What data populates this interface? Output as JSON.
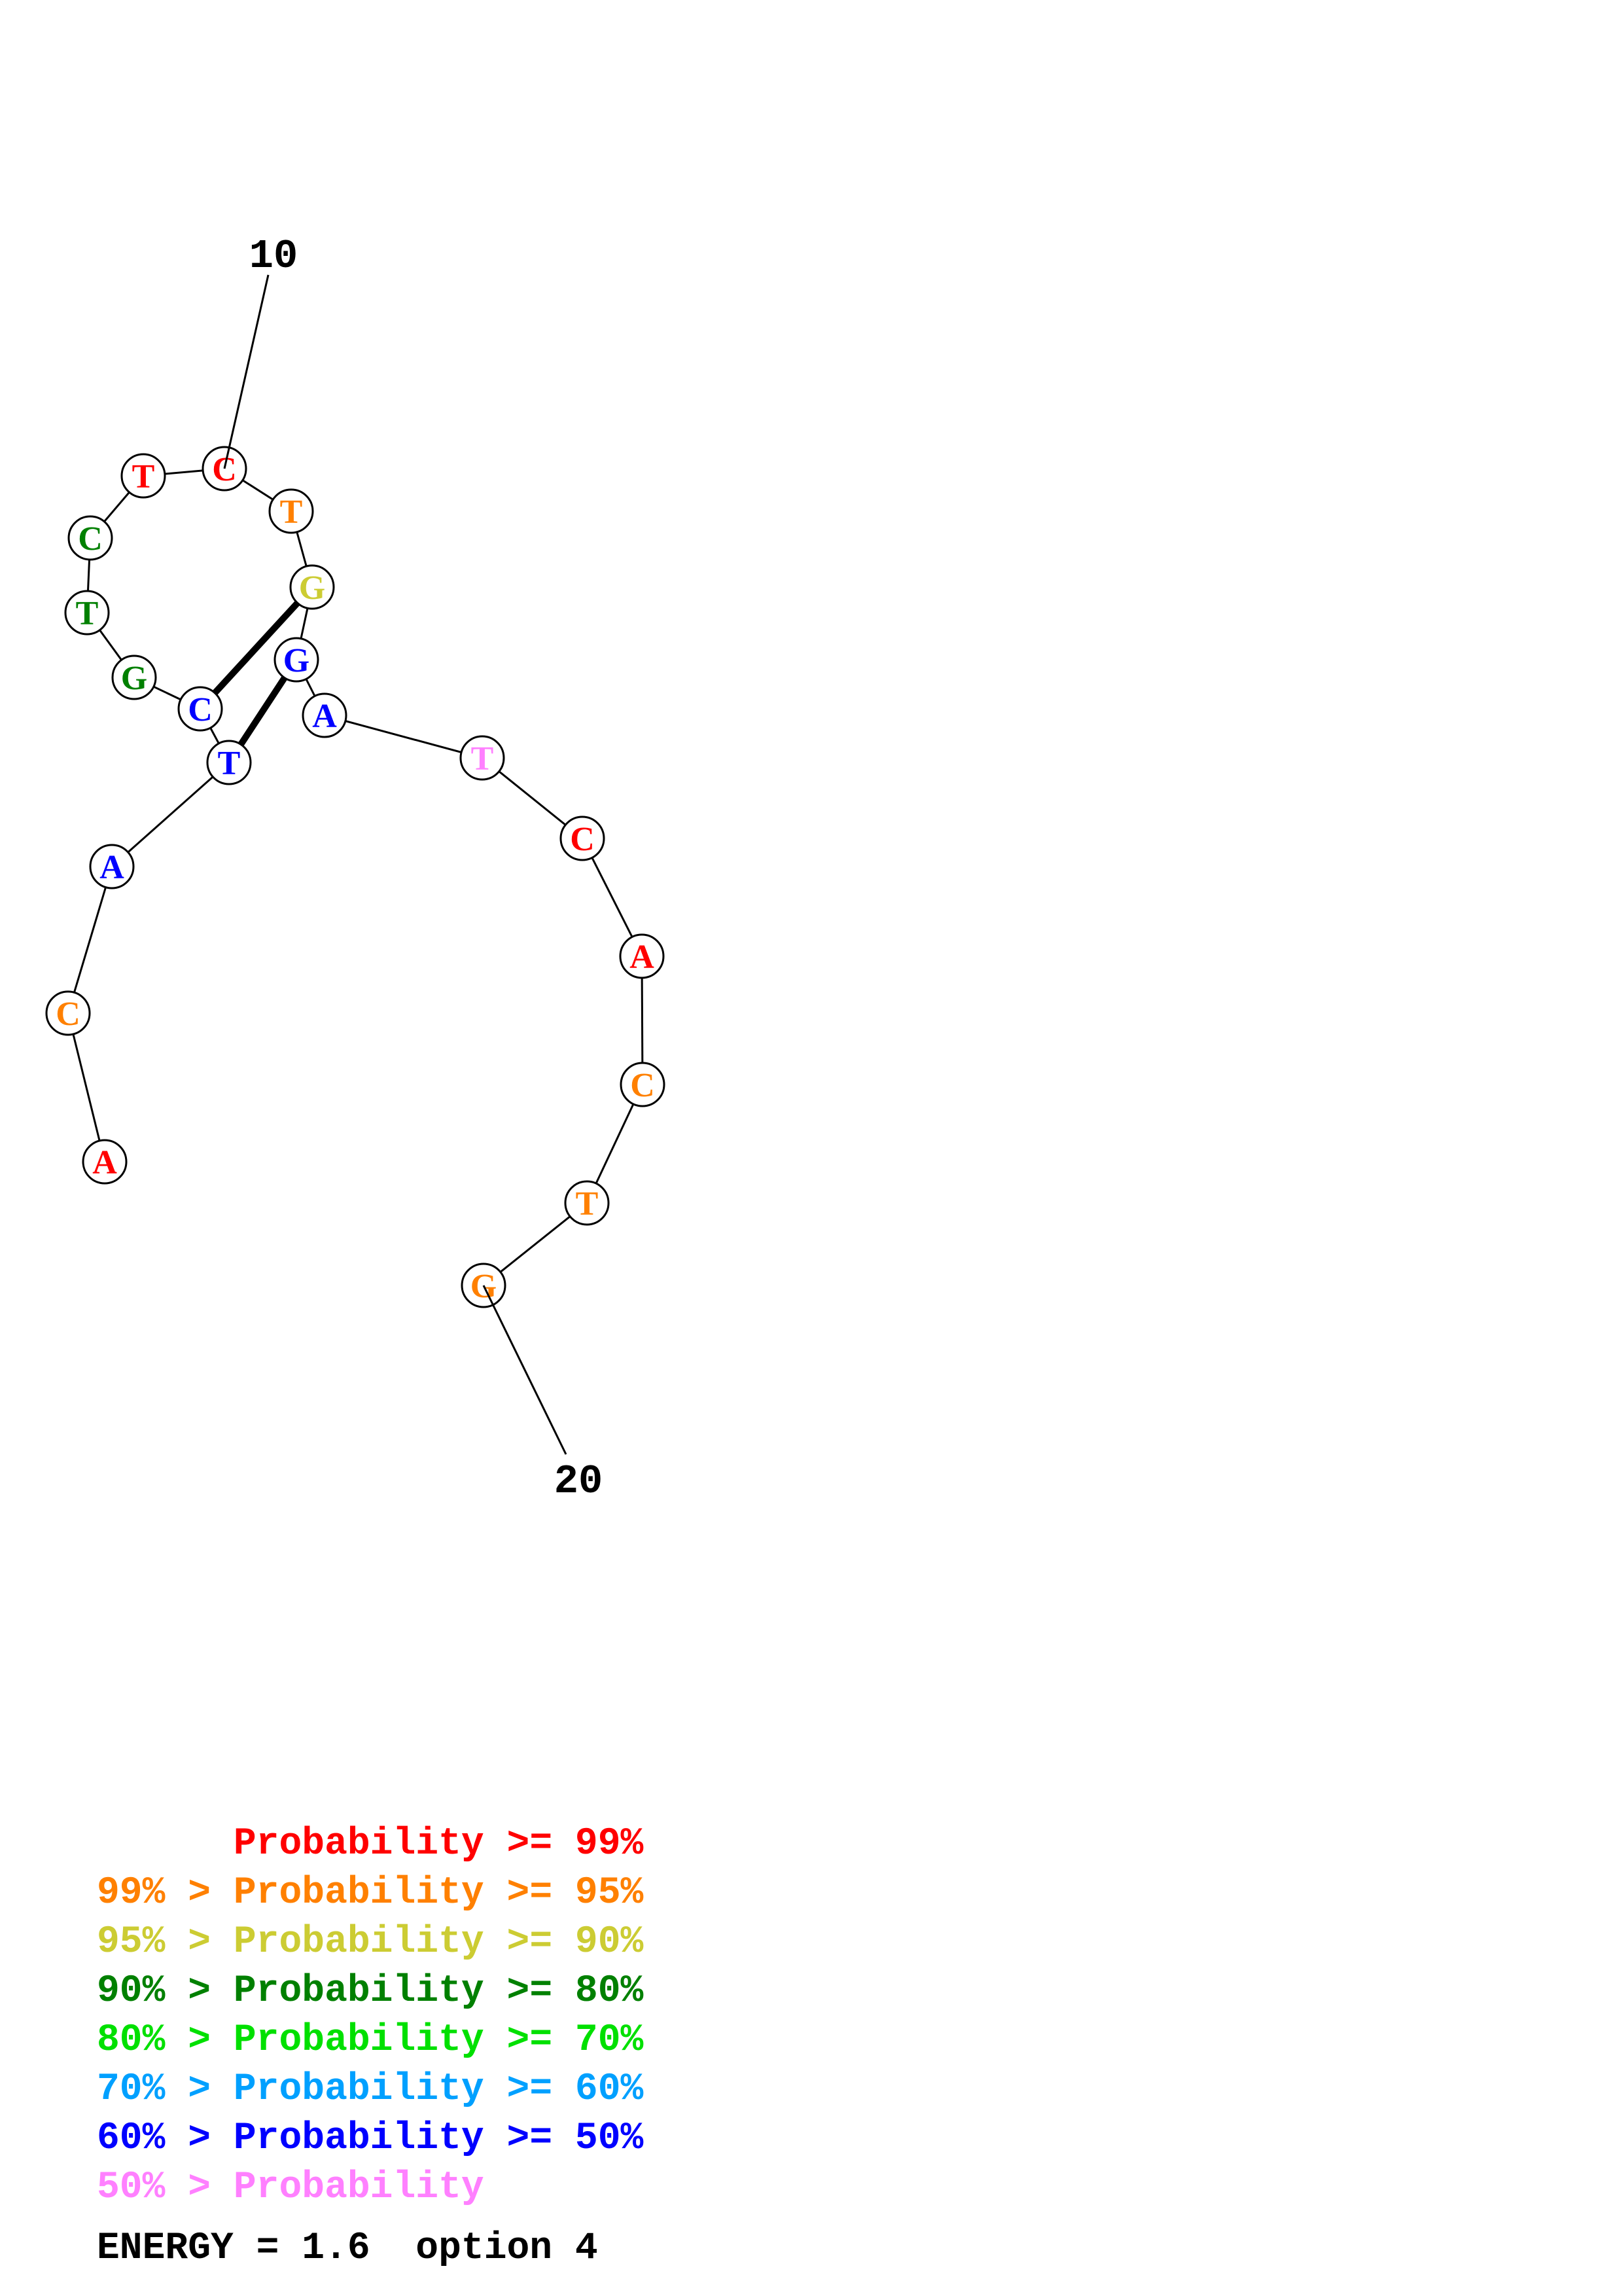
{
  "structure": {
    "label_start": "10",
    "label_end": "20",
    "nucleotides": [
      {
        "base": "A",
        "color": "#ff0000"
      },
      {
        "base": "C",
        "color": "#ff8000"
      },
      {
        "base": "A",
        "color": "#0000ff"
      },
      {
        "base": "T",
        "color": "#0000ff"
      },
      {
        "base": "C",
        "color": "#0000ff"
      },
      {
        "base": "G",
        "color": "#008000"
      },
      {
        "base": "T",
        "color": "#008000"
      },
      {
        "base": "C",
        "color": "#008000"
      },
      {
        "base": "T",
        "color": "#ff0000"
      },
      {
        "base": "C",
        "color": "#ff0000"
      },
      {
        "base": "T",
        "color": "#ff8000"
      },
      {
        "base": "G",
        "color": "#cccc33"
      },
      {
        "base": "G",
        "color": "#0000ff"
      },
      {
        "base": "A",
        "color": "#0000ff"
      },
      {
        "base": "T",
        "color": "#ff80ff"
      },
      {
        "base": "C",
        "color": "#ff0000"
      },
      {
        "base": "A",
        "color": "#ff0000"
      },
      {
        "base": "C",
        "color": "#ff8000"
      },
      {
        "base": "T",
        "color": "#ff8000"
      },
      {
        "base": "G",
        "color": "#ff8000"
      }
    ],
    "base_pairs": [
      [
        4,
        13
      ],
      [
        5,
        12
      ]
    ]
  },
  "legend": [
    {
      "prefix": "",
      "text": "Probability >= 99%",
      "color": "#ff0000"
    },
    {
      "prefix": "99% > ",
      "text": "Probability >= 95%",
      "color": "#ff8000"
    },
    {
      "prefix": "95% > ",
      "text": "Probability >= 90%",
      "color": "#cccc33"
    },
    {
      "prefix": "90% > ",
      "text": "Probability >= 80%",
      "color": "#008000"
    },
    {
      "prefix": "80% > ",
      "text": "Probability >= 70%",
      "color": "#00e000"
    },
    {
      "prefix": "70% > ",
      "text": "Probability >= 60%",
      "color": "#00a0ff"
    },
    {
      "prefix": "60% > ",
      "text": "Probability >= 50%",
      "color": "#0000ff"
    },
    {
      "prefix": "50% > ",
      "text": "Probability",
      "color": "#ff80ff"
    }
  ],
  "energy_text": "ENERGY = 1.6  option 4"
}
